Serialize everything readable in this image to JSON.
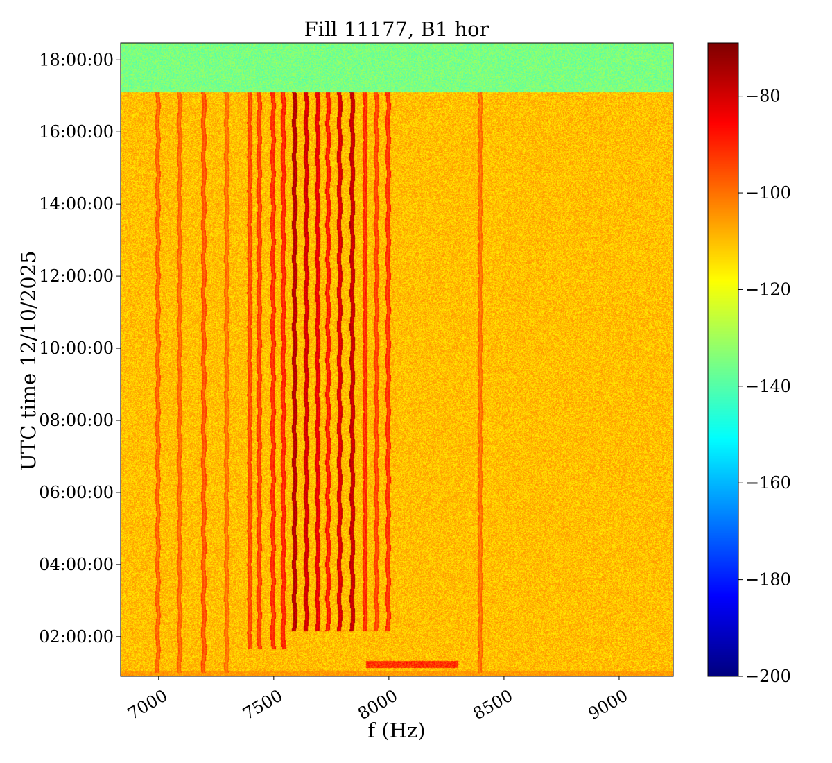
{
  "chart_data": {
    "type": "heatmap",
    "title": "Fill 11177, B1 hor",
    "xlabel": "f (Hz)",
    "ylabel": "UTC time 12/10/2025",
    "xlim": [
      6835,
      9235
    ],
    "ylim": [
      "00:54:00",
      "18:28:00"
    ],
    "xticks": [
      7000,
      7500,
      8000,
      8500,
      9000
    ],
    "yticks": [
      "02:00:00",
      "04:00:00",
      "06:00:00",
      "08:00:00",
      "10:00:00",
      "12:00:00",
      "14:00:00",
      "16:00:00",
      "18:00:00"
    ],
    "colorbar": {
      "colormap": "jet",
      "range": [
        -200,
        -69
      ],
      "ticks": [
        -80,
        -100,
        -120,
        -140,
        -160,
        -180,
        -200
      ]
    },
    "background_level": -110,
    "data_end_time": "17:07:00",
    "after_data_end_level": -135,
    "lines": [
      {
        "f": 6995,
        "level": -102,
        "start": "01:00:00"
      },
      {
        "f": 7090,
        "level": -103,
        "start": "01:00:00"
      },
      {
        "f": 7195,
        "level": -100,
        "start": "01:00:00"
      },
      {
        "f": 7295,
        "level": -104,
        "start": "01:00:00"
      },
      {
        "f": 7395,
        "level": -99,
        "start": "01:40:00"
      },
      {
        "f": 7435,
        "level": -98,
        "start": "01:40:00"
      },
      {
        "f": 7495,
        "level": -95,
        "start": "01:40:00"
      },
      {
        "f": 7540,
        "level": -94,
        "start": "01:40:00"
      },
      {
        "f": 7590,
        "level": -80,
        "start": "02:10:00"
      },
      {
        "f": 7640,
        "level": -84,
        "start": "02:10:00"
      },
      {
        "f": 7690,
        "level": -87,
        "start": "02:10:00"
      },
      {
        "f": 7735,
        "level": -92,
        "start": "02:10:00"
      },
      {
        "f": 7785,
        "level": -85,
        "start": "02:10:00"
      },
      {
        "f": 7840,
        "level": -82,
        "start": "02:10:00"
      },
      {
        "f": 7895,
        "level": -95,
        "start": "02:10:00"
      },
      {
        "f": 7945,
        "level": -98,
        "start": "02:10:00"
      },
      {
        "f": 7995,
        "level": -96,
        "start": "02:10:00"
      },
      {
        "f": 8395,
        "level": -104,
        "start": "01:00:00"
      }
    ]
  }
}
